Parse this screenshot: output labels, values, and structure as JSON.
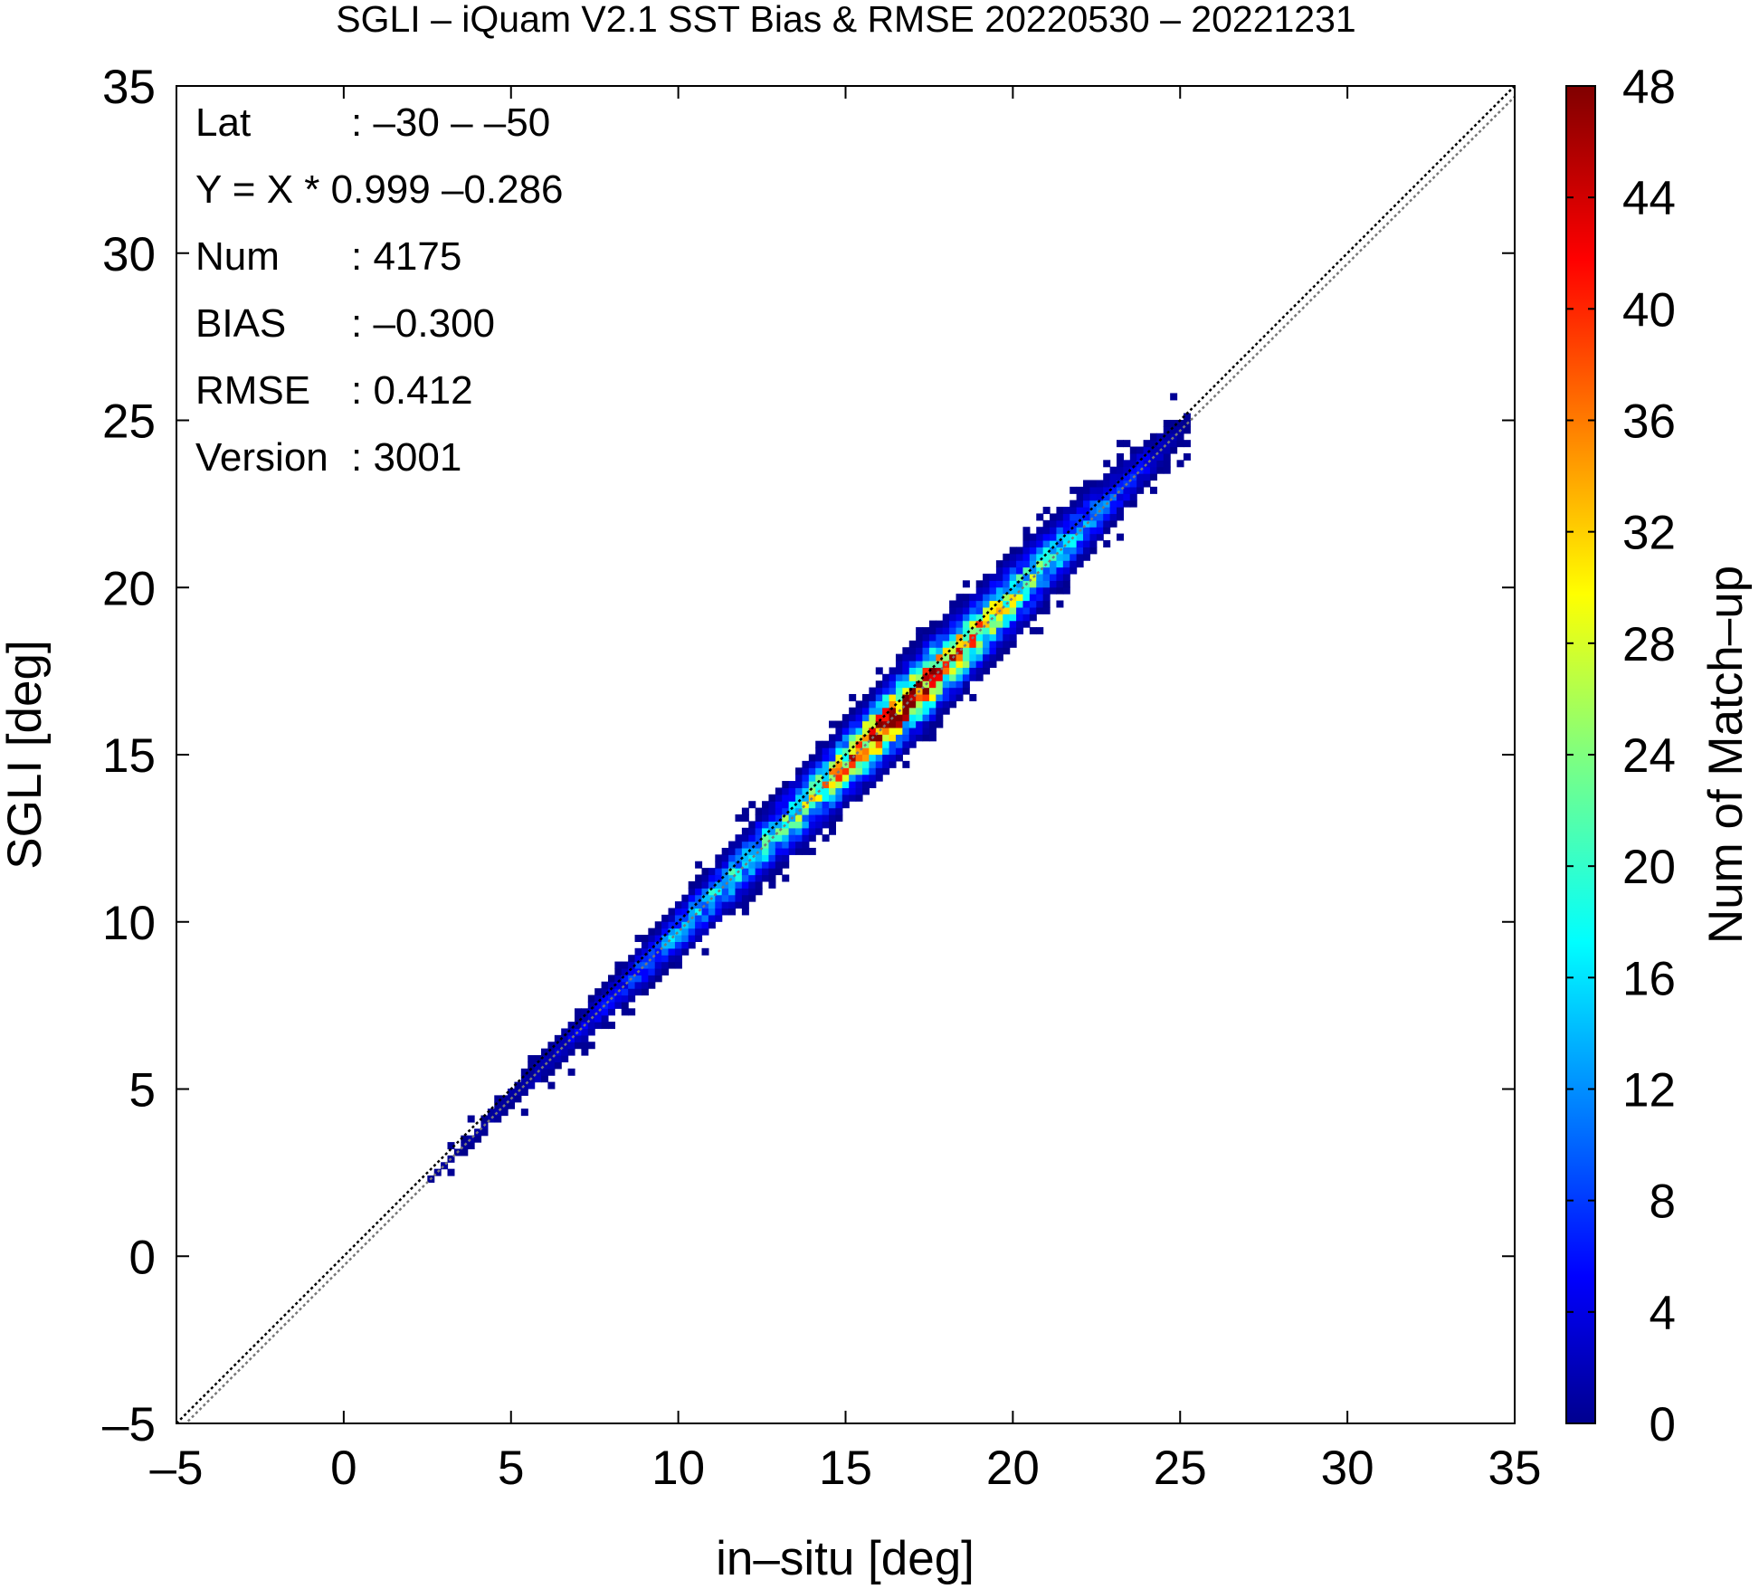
{
  "chart_data": {
    "type": "heatmap",
    "title": "SGLI – iQuam V2.1 SST Bias & RMSE 20220530 – 20221231",
    "xlabel": "in–situ [deg]",
    "ylabel": "SGLI [deg]",
    "xlim": [
      -5,
      35
    ],
    "ylim": [
      -5,
      35
    ],
    "xticks": [
      -5,
      0,
      5,
      10,
      15,
      20,
      25,
      30,
      35
    ],
    "yticks": [
      -5,
      0,
      5,
      10,
      15,
      20,
      25,
      30,
      35
    ],
    "xtick_labels": [
      "–5",
      "0",
      "5",
      "10",
      "15",
      "20",
      "25",
      "30",
      "35"
    ],
    "ytick_labels": [
      "–5",
      "0",
      "5",
      "10",
      "15",
      "20",
      "25",
      "30",
      "35"
    ],
    "grid": false,
    "lines": [
      {
        "name": "one-to-one",
        "slope": 1.0,
        "intercept": 0.0,
        "color": "#000000",
        "style": "dotted"
      },
      {
        "name": "regression",
        "slope": 0.999,
        "intercept": -0.286,
        "color": "#777777",
        "style": "dotted"
      }
    ],
    "stats": [
      {
        "label": "Lat",
        "value": ": –30 – –50"
      },
      {
        "label": "Y = X * 0.999 –0.286",
        "value": ""
      },
      {
        "label": "Num",
        "value": ": 4175"
      },
      {
        "label": "BIAS",
        "value": ": –0.300"
      },
      {
        "label": "RMSE",
        "value": ": 0.412"
      },
      {
        "label": "Version",
        "value": ": 3001"
      }
    ],
    "colorbar": {
      "label": "Num of Match–up",
      "min": 0,
      "max": 48,
      "ticks": [
        0,
        4,
        8,
        12,
        16,
        20,
        24,
        28,
        32,
        36,
        40,
        44,
        48
      ],
      "colormap": "jet"
    },
    "density": {
      "bin_size": 0.2,
      "x_range": [
        2.5,
        25.2
      ],
      "offset": -0.286,
      "spread_profile": [
        [
          3,
          0.15
        ],
        [
          8,
          0.3
        ],
        [
          12,
          0.45
        ],
        [
          17,
          0.55
        ],
        [
          21,
          0.5
        ],
        [
          24,
          0.35
        ]
      ],
      "peak_profile": [
        [
          3,
          1
        ],
        [
          5,
          2
        ],
        [
          8,
          6
        ],
        [
          10,
          14
        ],
        [
          12,
          18
        ],
        [
          14,
          24
        ],
        [
          16,
          44
        ],
        [
          17.5,
          40
        ],
        [
          19,
          30
        ],
        [
          21,
          18
        ],
        [
          23,
          8
        ],
        [
          25,
          1
        ]
      ]
    }
  },
  "colors": {
    "axes": "#000000",
    "background": "#ffffff",
    "regression_line": "#777777"
  }
}
